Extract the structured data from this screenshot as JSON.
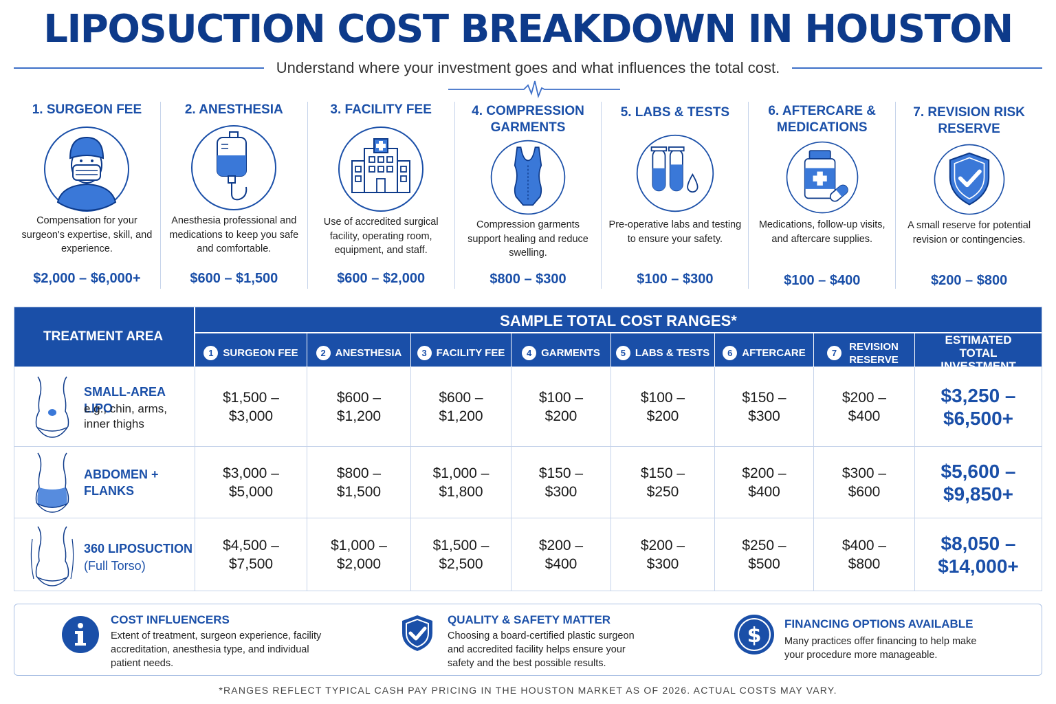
{
  "title": "LIPOSUCTION COST BREAKDOWN IN HOUSTON",
  "subtitle": "Understand where your investment goes and what influences the total cost.",
  "categories": [
    {
      "title": "1. SURGEON FEE",
      "desc": "Compensation for your surgeon's expertise, skill, and experience.",
      "price": "$2,000 – $6,000+",
      "icon": "surgeon-icon"
    },
    {
      "title": "2. ANESTHESIA",
      "desc": "Anesthesia professional and medications to keep you safe and comfortable.",
      "price": "$600 – $1,500",
      "icon": "iv-bag-icon"
    },
    {
      "title": "3. FACILITY FEE",
      "desc": "Use of accredited surgical facility, operating room, equipment, and staff.",
      "price": "$600 – $2,000",
      "icon": "hospital-icon"
    },
    {
      "title": "4. COMPRESSION GARMENTS",
      "desc": "Compression garments support healing and reduce swelling.",
      "price": "$800 – $300",
      "icon": "garment-icon"
    },
    {
      "title": "5. LABS & TESTS",
      "desc": "Pre-operative labs and testing to ensure your safety.",
      "price": "$100 – $300",
      "icon": "test-tubes-icon"
    },
    {
      "title": "6. AFTERCARE & MEDICATIONS",
      "desc": "Medications, follow-up visits, and aftercare supplies.",
      "price": "$100 – $400",
      "icon": "medication-icon"
    },
    {
      "title": "7. REVISION RISK RESERVE",
      "desc": "A small reserve for potential revision or contingencies.",
      "price": "$200 – $800",
      "icon": "shield-check-icon"
    }
  ],
  "table": {
    "area_header": "TREATMENT AREA",
    "sample_header": "SAMPLE TOTAL COST RANGES*",
    "columns": [
      {
        "num": "1",
        "label": "SURGEON FEE"
      },
      {
        "num": "2",
        "label": "ANESTHESIA"
      },
      {
        "num": "3",
        "label": "FACILITY FEE"
      },
      {
        "num": "4",
        "label": "GARMENTS"
      },
      {
        "num": "5",
        "label": "LABS & TESTS"
      },
      {
        "num": "6",
        "label": "AFTERCARE"
      },
      {
        "num": "7",
        "label": "REVISION RESERVE"
      }
    ],
    "total_header": "ESTIMATED TOTAL INVESTMENT",
    "rows": [
      {
        "name": "SMALL-AREA LIPO",
        "sub": "e.g., chin, arms, inner thighs",
        "cells": [
          [
            "$1,500 –",
            "$3,000"
          ],
          [
            "$600 –",
            "$1,200"
          ],
          [
            "$600 –",
            "$1,200"
          ],
          [
            "$100 –",
            "$200"
          ],
          [
            "$100 –",
            "$200"
          ],
          [
            "$150 –",
            "$300"
          ],
          [
            "$200 –",
            "$400"
          ]
        ],
        "total": [
          "$3,250 –",
          "$6,500+"
        ]
      },
      {
        "name": "ABDOMEN + FLANKS",
        "sub": "",
        "cells": [
          [
            "$3,000 –",
            "$5,000"
          ],
          [
            "$800 –",
            "$1,500"
          ],
          [
            "$1,000 –",
            "$1,800"
          ],
          [
            "$150 –",
            "$300"
          ],
          [
            "$150 –",
            "$250"
          ],
          [
            "$200 –",
            "$400"
          ],
          [
            "$300 –",
            "$600"
          ]
        ],
        "total": [
          "$5,600 –",
          "$9,850+"
        ]
      },
      {
        "name": "360 LIPOSUCTION",
        "sub": "(Full Torso)",
        "cells": [
          [
            "$4,500 –",
            "$7,500"
          ],
          [
            "$1,000 –",
            "$2,000"
          ],
          [
            "$1,500 –",
            "$2,500"
          ],
          [
            "$200 –",
            "$400"
          ],
          [
            "$200 –",
            "$300"
          ],
          [
            "$250 –",
            "$500"
          ],
          [
            "$400 –",
            "$800"
          ]
        ],
        "total": [
          "$8,050 –",
          "$14,000+"
        ]
      }
    ]
  },
  "info": [
    {
      "title": "COST INFLUENCERS",
      "lines": [
        "Extent of treatment, surgeon experience, facility",
        "accreditation, anesthesia type, and individual",
        "patient needs."
      ],
      "icon": "info-icon"
    },
    {
      "title": "QUALITY & SAFETY MATTER",
      "lines": [
        "Choosing a board-certified plastic surgeon",
        "and accredited facility helps ensure your",
        "safety and the best possible results."
      ],
      "icon": "shield-check-icon"
    },
    {
      "title": "FINANCING OPTIONS AVAILABLE",
      "lines": [
        "Many practices offer financing to help make",
        "your procedure more manageable."
      ],
      "icon": "dollar-icon"
    }
  ],
  "footnote": "*RANGES REFLECT TYPICAL CASH PAY PRICING IN THE HOUSTON MARKET AS OF 2026. ACTUAL COSTS MAY VARY.",
  "colors": {
    "primary": "#1a4fa8",
    "title": "#0d3a8a",
    "border": "#c5d3ea"
  }
}
